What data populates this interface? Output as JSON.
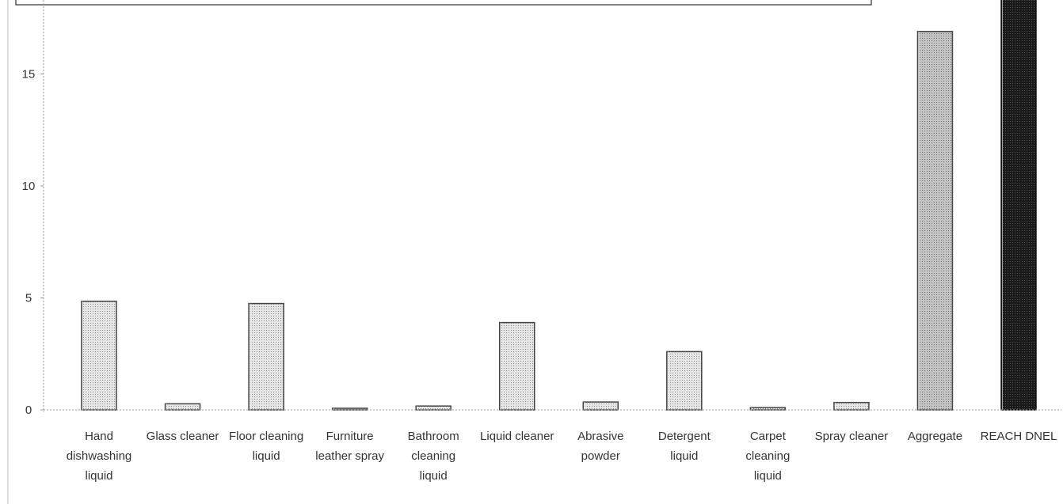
{
  "chart_data": {
    "type": "bar",
    "title": "",
    "xlabel": "",
    "ylabel": "",
    "ylim": [
      0,
      18
    ],
    "yticks": [
      0,
      5,
      10,
      15
    ],
    "grid": false,
    "legend": "none",
    "categories": [
      [
        "Hand",
        "dishwashing",
        "liquid"
      ],
      [
        "Glass cleaner"
      ],
      [
        "Floor cleaning",
        "liquid"
      ],
      [
        "Furniture",
        "leather spray"
      ],
      [
        "Bathroom",
        "cleaning",
        "liquid"
      ],
      [
        "Liquid cleaner"
      ],
      [
        "Abrasive",
        "powder"
      ],
      [
        "Detergent",
        "liquid"
      ],
      [
        "Carpet",
        "cleaning",
        "liquid"
      ],
      [
        "Spray cleaner"
      ],
      [
        "Aggregate"
      ],
      [
        "REACH DNEL"
      ]
    ],
    "values": [
      4.85,
      0.27,
      4.75,
      0.07,
      0.17,
      3.9,
      0.35,
      2.6,
      0.1,
      0.33,
      16.9,
      20
    ],
    "bar_styles": [
      "light",
      "light",
      "light",
      "light",
      "light",
      "light",
      "light",
      "light",
      "light",
      "light",
      "medium",
      "dark"
    ],
    "colors": {
      "light": "#dcdcdc",
      "medium": "#b4b4b4",
      "dark": "#1a1a1a",
      "outline": "#444444",
      "axis": "#999999"
    }
  }
}
